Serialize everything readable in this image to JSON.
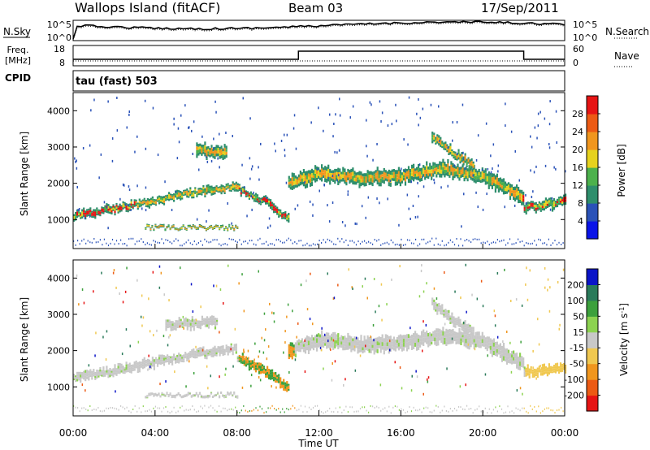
{
  "header": {
    "title": "Wallops Island (fitACF)",
    "beam": "Beam 03",
    "date": "17/Sep/2011"
  },
  "nsky_panel": {
    "left_label": "N.Sky",
    "right_label": "N.Search",
    "left_ticks": [
      "10^5",
      "10^0"
    ],
    "right_ticks": [
      "10^5",
      "10^0"
    ]
  },
  "freq_panel": {
    "left_label_1": "Freq.",
    "left_label_2": "[MHz]",
    "right_label": "Nave",
    "left_ticks": [
      "18",
      "8"
    ],
    "right_ticks": [
      "60",
      "0"
    ]
  },
  "cpid": {
    "label": "CPID",
    "mode": "tau (fast) 503"
  },
  "colors": {
    "power": [
      "#0a14e8",
      "#2a52b8",
      "#2e8e6c",
      "#4cb14c",
      "#e6d21e",
      "#f0961e",
      "#ec5a14",
      "#e61414"
    ],
    "velocity": [
      "#e61414",
      "#ec5a14",
      "#f0961e",
      "#f0c850",
      "#c8c8c8",
      "#8cd250",
      "#3ca03c",
      "#2a7a5a",
      "#0a14c8"
    ]
  },
  "chart_data": [
    {
      "type": "heatmap",
      "title": "",
      "xlabel": "",
      "ylabel": "Slant Range [km]",
      "xlim": [
        "00:00",
        "24:00"
      ],
      "ylim": [
        200,
        4500
      ],
      "y_ticks": [
        "1000",
        "2000",
        "3000",
        "4000"
      ],
      "colorbar": {
        "label": "Power [dB]",
        "ticks": [
          "4",
          "8",
          "12",
          "16",
          "20",
          "24",
          "28"
        ]
      },
      "bands": [
        {
          "t": [
            0,
            2.5,
            5,
            7,
            8
          ],
          "r": [
            1100,
            1350,
            1650,
            1850,
            1900
          ],
          "w": 250
        },
        {
          "t": [
            8,
            9.5,
            10.5
          ],
          "r": [
            1850,
            1450,
            1000
          ],
          "w": 250
        },
        {
          "t": [
            10.5,
            12,
            14,
            16,
            18,
            20,
            22
          ],
          "r": [
            2000,
            2250,
            2150,
            2200,
            2400,
            2200,
            1600
          ],
          "w": 450
        },
        {
          "t": [
            22,
            23,
            24
          ],
          "r": [
            1350,
            1400,
            1500
          ],
          "w": 300
        },
        {
          "t": [
            3.5,
            8
          ],
          "r": [
            780,
            780
          ],
          "w": 90
        },
        {
          "t": [
            6,
            7.5
          ],
          "r": [
            2900,
            2850
          ],
          "w": 400
        },
        {
          "t": [
            17.5,
            18.5,
            19.5
          ],
          "r": [
            3300,
            2850,
            2500
          ],
          "w": 300
        }
      ]
    },
    {
      "type": "heatmap",
      "title": "",
      "xlabel": "Time UT",
      "ylabel": "Slant Range [km]",
      "xlim": [
        "00:00",
        "24:00"
      ],
      "ylim": [
        200,
        4500
      ],
      "x_ticks": [
        "00:00",
        "04:00",
        "08:00",
        "12:00",
        "16:00",
        "20:00",
        "00:00"
      ],
      "y_ticks": [
        "1000",
        "2000",
        "3000",
        "4000"
      ],
      "colorbar": {
        "label": "Velocity [m s^-1]",
        "ticks": [
          "200",
          "100",
          "50",
          "15",
          "-15",
          "-50",
          "-100",
          "-200"
        ]
      },
      "bands": [
        {
          "t": [
            0,
            2.5,
            5,
            7,
            8
          ],
          "r": [
            1250,
            1500,
            1800,
            2000,
            2050
          ],
          "w": 280
        },
        {
          "t": [
            8,
            9.5,
            10.5
          ],
          "r": [
            1800,
            1350,
            1000
          ],
          "w": 300
        },
        {
          "t": [
            10.5,
            12,
            14,
            16,
            18,
            20,
            22
          ],
          "r": [
            2000,
            2300,
            2150,
            2200,
            2400,
            2250,
            1600
          ],
          "w": 450
        },
        {
          "t": [
            22,
            23,
            24
          ],
          "r": [
            1400,
            1450,
            1550
          ],
          "w": 300
        },
        {
          "t": [
            3.5,
            8
          ],
          "r": [
            780,
            780
          ],
          "w": 90
        },
        {
          "t": [
            4.5,
            7
          ],
          "r": [
            2700,
            2800
          ],
          "w": 300
        },
        {
          "t": [
            17.5,
            18.5,
            19.5
          ],
          "r": [
            3300,
            2850,
            2500
          ],
          "w": 300
        }
      ]
    }
  ]
}
